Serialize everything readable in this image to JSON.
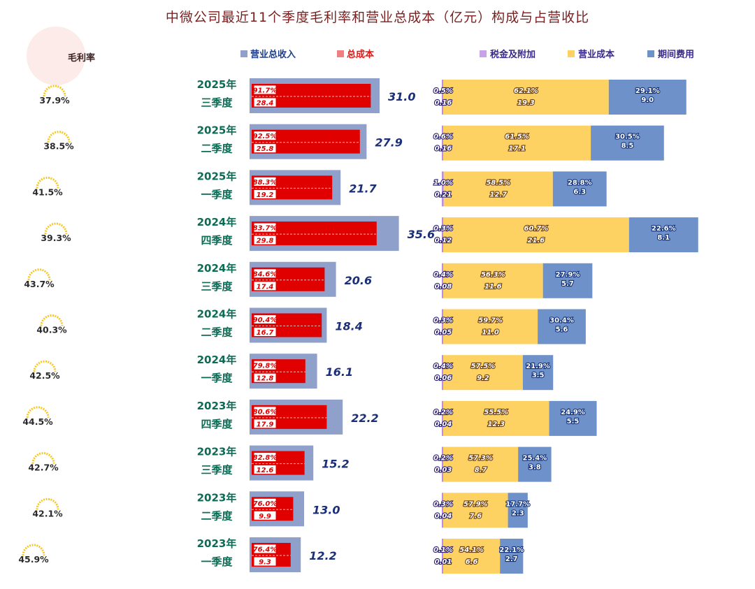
{
  "title": "中微公司最近11个季度毛利率和营业总成本（亿元）构成与占营收比",
  "legend": {
    "margin": "毛利率",
    "left": [
      {
        "label": "营业总收入",
        "color": "#8fa1cb",
        "text_color": "#1f3f8f"
      },
      {
        "label": "总成本",
        "color": "#f08080",
        "text_color": "#e01818"
      }
    ],
    "right": [
      {
        "label": "税金及附加",
        "color": "#c9a0ea",
        "text_color": "#3a2a8a"
      },
      {
        "label": "营业成本",
        "color": "#fdd262",
        "text_color": "#3a2a8a"
      },
      {
        "label": "期间费用",
        "color": "#6d91c8",
        "text_color": "#3a2a8a"
      }
    ]
  },
  "colors": {
    "revenue": "#8fa1cb",
    "cost": "#e00000",
    "tax": "#b98de8",
    "opcost": "#fdd262",
    "period": "#6d91c8",
    "period_label": "#12307a",
    "year": "#0c6b55",
    "revenue_label": "#1b2f78",
    "gauge": "#f7c823"
  },
  "chart_data": {
    "type": "bar",
    "title": "中微公司最近11个季度毛利率和营业总成本（亿元）构成与占营收比",
    "series_names": [
      "营业总收入",
      "总成本",
      "税金及附加",
      "营业成本",
      "期间费用",
      "毛利率"
    ],
    "rows": [
      {
        "year": "2025年",
        "quarter": "三季度",
        "margin": "37.9%",
        "revenue": 31.0,
        "cost_pct": "91.7%",
        "cost": 28.4,
        "tax_pct": "0.5%",
        "tax": 0.16,
        "op_pct": "62.1%",
        "op": 19.3,
        "per_pct": "29.1%",
        "per": 9.0
      },
      {
        "year": "2025年",
        "quarter": "二季度",
        "margin": "38.5%",
        "revenue": 27.9,
        "cost_pct": "92.5%",
        "cost": 25.8,
        "tax_pct": "0.6%",
        "tax": 0.16,
        "op_pct": "61.5%",
        "op": 17.1,
        "per_pct": "30.5%",
        "per": 8.5
      },
      {
        "year": "2025年",
        "quarter": "一季度",
        "margin": "41.5%",
        "revenue": 21.7,
        "cost_pct": "88.3%",
        "cost": 19.2,
        "tax_pct": "1.0%",
        "tax": 0.21,
        "op_pct": "58.5%",
        "op": 12.7,
        "per_pct": "28.8%",
        "per": 6.3
      },
      {
        "year": "2024年",
        "quarter": "四季度",
        "margin": "39.3%",
        "revenue": 35.6,
        "cost_pct": "83.7%",
        "cost": 29.8,
        "tax_pct": "0.3%",
        "tax": 0.12,
        "op_pct": "60.7%",
        "op": 21.6,
        "per_pct": "22.6%",
        "per": 8.1
      },
      {
        "year": "2024年",
        "quarter": "三季度",
        "margin": "43.7%",
        "revenue": 20.6,
        "cost_pct": "84.6%",
        "cost": 17.4,
        "tax_pct": "0.4%",
        "tax": 0.08,
        "op_pct": "56.3%",
        "op": 11.6,
        "per_pct": "27.9%",
        "per": 5.7
      },
      {
        "year": "2024年",
        "quarter": "二季度",
        "margin": "40.3%",
        "revenue": 18.4,
        "cost_pct": "90.4%",
        "cost": 16.7,
        "tax_pct": "0.3%",
        "tax": 0.05,
        "op_pct": "59.7%",
        "op": 11.0,
        "per_pct": "30.4%",
        "per": 5.6
      },
      {
        "year": "2024年",
        "quarter": "一季度",
        "margin": "42.5%",
        "revenue": 16.1,
        "cost_pct": "79.8%",
        "cost": 12.8,
        "tax_pct": "0.4%",
        "tax": 0.06,
        "op_pct": "57.5%",
        "op": 9.2,
        "per_pct": "21.9%",
        "per": 3.5
      },
      {
        "year": "2023年",
        "quarter": "四季度",
        "margin": "44.5%",
        "revenue": 22.2,
        "cost_pct": "80.6%",
        "cost": 17.9,
        "tax_pct": "0.2%",
        "tax": 0.04,
        "op_pct": "55.5%",
        "op": 12.3,
        "per_pct": "24.9%",
        "per": 5.5
      },
      {
        "year": "2023年",
        "quarter": "三季度",
        "margin": "42.7%",
        "revenue": 15.2,
        "cost_pct": "82.8%",
        "cost": 12.6,
        "tax_pct": "0.2%",
        "tax": 0.03,
        "op_pct": "57.3%",
        "op": 8.7,
        "per_pct": "25.4%",
        "per": 3.8
      },
      {
        "year": "2023年",
        "quarter": "二季度",
        "margin": "42.1%",
        "revenue": 13.0,
        "cost_pct": "76.0%",
        "cost": 9.9,
        "tax_pct": "0.3%",
        "tax": 0.04,
        "op_pct": "57.9%",
        "op": 7.6,
        "per_pct": "17.7%",
        "per": 2.3
      },
      {
        "year": "2023年",
        "quarter": "一季度",
        "margin": "45.9%",
        "revenue": 12.2,
        "cost_pct": "76.4%",
        "cost": 9.3,
        "tax_pct": "0.1%",
        "tax": 0.01,
        "op_pct": "54.1%",
        "op": 6.6,
        "per_pct": "22.1%",
        "per": 2.7
      }
    ]
  }
}
